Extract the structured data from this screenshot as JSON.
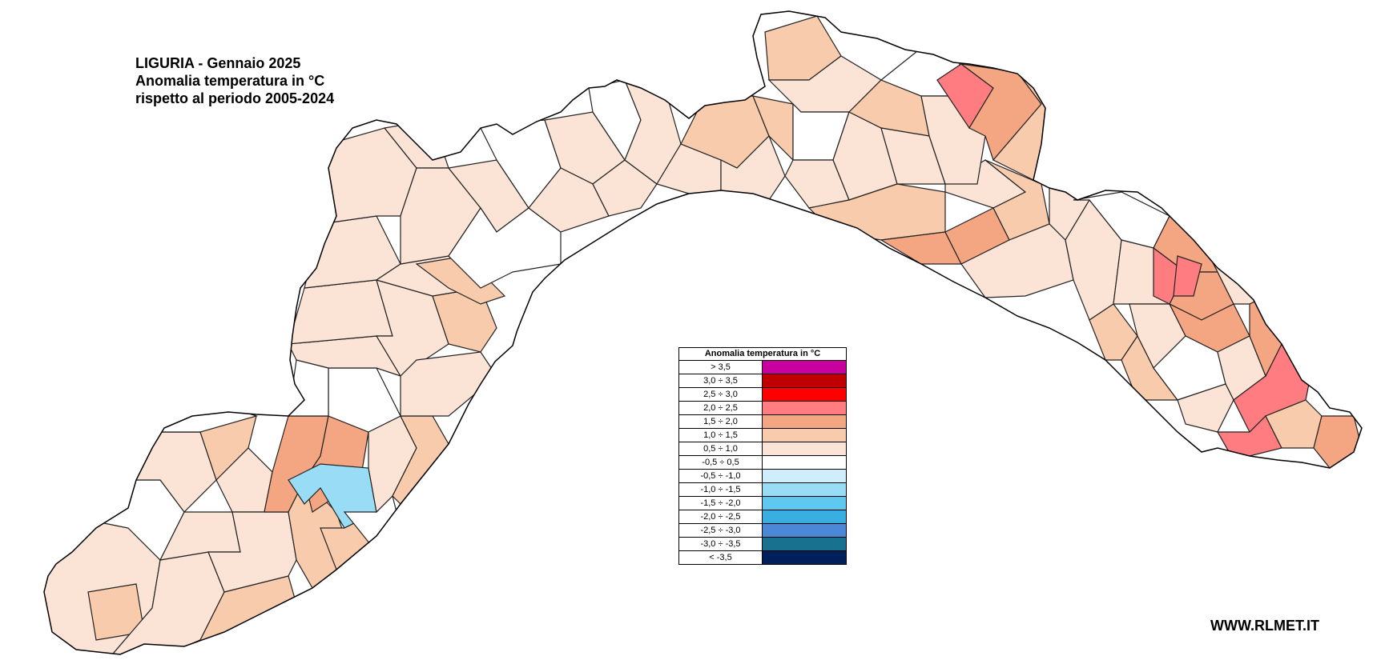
{
  "title": {
    "line1": "LIGURIA - Gennaio 2025",
    "line2": "Anomalia temperatura in °C",
    "line3": "rispetto al periodo 2005-2024"
  },
  "legend": {
    "title": "Anomalia temperatura in °C",
    "classes": [
      {
        "label": "> 3,5",
        "color": "#c800a0"
      },
      {
        "label": "3,0 ÷ 3,5",
        "color": "#c00000"
      },
      {
        "label": "2,5 ÷ 3,0",
        "color": "#ff0000"
      },
      {
        "label": "2,0 ÷ 2,5",
        "color": "#ff7c80"
      },
      {
        "label": "1,5 ÷ 2,0",
        "color": "#f4a683"
      },
      {
        "label": "1,0 ÷ 1,5",
        "color": "#f8cbad"
      },
      {
        "label": "0,5 ÷ 1,0",
        "color": "#fbe3d6"
      },
      {
        "label": "-0,5 ÷ 0,5",
        "color": "#ffffff"
      },
      {
        "label": "-0,5 ÷ -1,0",
        "color": "#cdeefa"
      },
      {
        "label": "-1,0 ÷ -1,5",
        "color": "#99dcf6"
      },
      {
        "label": "-1,5 ÷ -2,0",
        "color": "#5fc8f1"
      },
      {
        "label": "-2,0 ÷ -2,5",
        "color": "#3aaee0"
      },
      {
        "label": "-2,5 ÷ -3,0",
        "color": "#4b89d8"
      },
      {
        "label": "-3,0 ÷ -3,5",
        "color": "#18718e"
      },
      {
        "label": "< -3,5",
        "color": "#00205b"
      }
    ]
  },
  "footer": {
    "site": "WWW.RLMET.IT"
  }
}
